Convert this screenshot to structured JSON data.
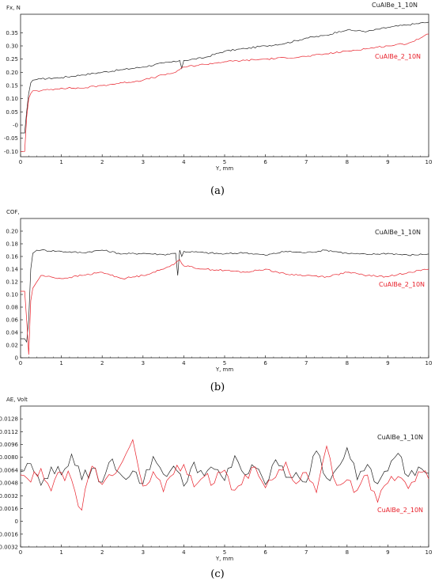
{
  "chart_data": [
    {
      "type": "line",
      "caption": "(a)",
      "ylabel": "Fx, N",
      "xlabel": "Y, mm",
      "xlim": [
        0,
        10
      ],
      "ylim": [
        -0.12,
        0.42
      ],
      "xticks": [
        "0",
        "1",
        "2",
        "3",
        "4",
        "5",
        "6",
        "7",
        "8",
        "9",
        "10"
      ],
      "yticks": [
        {
          "v": 0.35,
          "label": "0.35"
        },
        {
          "v": 0.3,
          "label": "0.30"
        },
        {
          "v": 0.25,
          "label": "0.25"
        },
        {
          "v": 0.2,
          "label": "0.20"
        },
        {
          "v": 0.15,
          "label": "0.15"
        },
        {
          "v": 0.1,
          "label": "0.10"
        },
        {
          "v": 0.05,
          "label": "0.05"
        },
        {
          "v": 0.0,
          "label": "-0"
        },
        {
          "v": -0.05,
          "label": "-0.05"
        },
        {
          "v": -0.1,
          "label": "-0.10"
        }
      ],
      "grid": false,
      "legend": "right",
      "series": [
        {
          "name": "CuAlBe_1_10N",
          "color": "#222222",
          "x": [
            0,
            0.1,
            0.15,
            0.2,
            0.25,
            0.3,
            0.5,
            1,
            1.5,
            2,
            2.5,
            3,
            3.5,
            3.8,
            3.9,
            3.95,
            4.0,
            4.5,
            5,
            5.5,
            6,
            6.5,
            7,
            7.5,
            7.8,
            8,
            8.5,
            9,
            9.5,
            10
          ],
          "y": [
            -0.03,
            -0.03,
            0.05,
            0.12,
            0.16,
            0.17,
            0.175,
            0.18,
            0.19,
            0.2,
            0.21,
            0.22,
            0.235,
            0.24,
            0.245,
            0.215,
            0.245,
            0.255,
            0.28,
            0.29,
            0.3,
            0.31,
            0.33,
            0.34,
            0.355,
            0.36,
            0.355,
            0.37,
            0.38,
            0.39
          ]
        },
        {
          "name": "CuAlBe_2_10N",
          "color": "#e8202a",
          "x": [
            0,
            0.1,
            0.15,
            0.2,
            0.25,
            0.3,
            0.5,
            1,
            1.5,
            2,
            2.5,
            3,
            3.5,
            3.8,
            3.9,
            4.0,
            4.5,
            5,
            5.5,
            6,
            6.5,
            7,
            7.5,
            8,
            8.5,
            9,
            9.5,
            9.8,
            10
          ],
          "y": [
            -0.1,
            -0.1,
            0.03,
            0.1,
            0.12,
            0.13,
            0.13,
            0.14,
            0.14,
            0.15,
            0.16,
            0.17,
            0.19,
            0.2,
            0.21,
            0.22,
            0.23,
            0.24,
            0.245,
            0.25,
            0.255,
            0.26,
            0.27,
            0.28,
            0.29,
            0.3,
            0.31,
            0.33,
            0.345
          ]
        }
      ]
    },
    {
      "type": "line",
      "caption": "(b)",
      "ylabel": "COF,",
      "xlabel": "Y, mm",
      "xlim": [
        0,
        10
      ],
      "ylim": [
        0,
        0.22
      ],
      "xticks": [
        "0",
        "1",
        "2",
        "3",
        "4",
        "5",
        "6",
        "7",
        "8",
        "9",
        "10"
      ],
      "yticks": [
        {
          "v": 0.2,
          "label": "0.20"
        },
        {
          "v": 0.18,
          "label": "0.18"
        },
        {
          "v": 0.16,
          "label": "0.16"
        },
        {
          "v": 0.14,
          "label": "0.14"
        },
        {
          "v": 0.12,
          "label": "0.12"
        },
        {
          "v": 0.1,
          "label": "0.10"
        },
        {
          "v": 0.08,
          "label": "0.08"
        },
        {
          "v": 0.06,
          "label": "0.06"
        },
        {
          "v": 0.04,
          "label": "0.04"
        },
        {
          "v": 0.02,
          "label": "0.02"
        },
        {
          "v": 0.0,
          "label": "0"
        }
      ],
      "grid": false,
      "legend": "right",
      "series": [
        {
          "name": "CuAlBe_1_10N",
          "color": "#222222",
          "x": [
            0,
            0.1,
            0.15,
            0.2,
            0.25,
            0.3,
            0.4,
            0.5,
            1,
            1.5,
            2,
            2.5,
            3,
            3.5,
            3.8,
            3.85,
            3.9,
            3.95,
            4.0,
            4.5,
            5,
            5.5,
            6,
            6.5,
            7,
            7.5,
            8,
            8.5,
            9,
            9.5,
            10
          ],
          "y": [
            0.03,
            0.03,
            0.025,
            0.06,
            0.14,
            0.165,
            0.17,
            0.17,
            0.168,
            0.166,
            0.17,
            0.164,
            0.165,
            0.163,
            0.165,
            0.13,
            0.17,
            0.16,
            0.168,
            0.166,
            0.164,
            0.166,
            0.162,
            0.168,
            0.166,
            0.17,
            0.165,
            0.163,
            0.165,
            0.162,
            0.164
          ]
        },
        {
          "name": "CuAlBe_2_10N",
          "color": "#e8202a",
          "x": [
            0,
            0.1,
            0.15,
            0.2,
            0.25,
            0.3,
            0.4,
            0.5,
            1,
            1.5,
            2,
            2.5,
            3,
            3.5,
            3.8,
            3.9,
            4.0,
            4.5,
            5,
            5.5,
            6,
            6.5,
            7,
            7.5,
            8,
            8.5,
            9,
            9.5,
            10
          ],
          "y": [
            0.105,
            0.105,
            0.06,
            0.005,
            0.09,
            0.11,
            0.12,
            0.13,
            0.125,
            0.13,
            0.135,
            0.125,
            0.13,
            0.14,
            0.15,
            0.155,
            0.145,
            0.14,
            0.138,
            0.135,
            0.14,
            0.132,
            0.13,
            0.128,
            0.135,
            0.13,
            0.128,
            0.135,
            0.14
          ]
        }
      ]
    },
    {
      "type": "line",
      "caption": "(c)",
      "ylabel": "AE, Volt",
      "xlabel": "Y, mm",
      "xlim": [
        0,
        10
      ],
      "ylim": [
        -0.0032,
        0.0144
      ],
      "xticks": [
        "0",
        "1",
        "2",
        "3",
        "4",
        "5",
        "6",
        "7",
        "8",
        "9",
        "10"
      ],
      "yticks": [
        {
          "v": 0.0128,
          "label": "0.0128"
        },
        {
          "v": 0.0112,
          "label": "0.0112"
        },
        {
          "v": 0.0096,
          "label": "0.0096"
        },
        {
          "v": 0.008,
          "label": "0.0080"
        },
        {
          "v": 0.0064,
          "label": "0.0064"
        },
        {
          "v": 0.0048,
          "label": "0.0048"
        },
        {
          "v": 0.0032,
          "label": "0.0032"
        },
        {
          "v": 0.0016,
          "label": "0.0016"
        },
        {
          "v": 0.0,
          "label": "0"
        },
        {
          "v": -0.0016,
          "label": "-0.0016"
        },
        {
          "v": -0.0032,
          "label": "-0.0032"
        }
      ],
      "grid": false,
      "legend": "right",
      "series": [
        {
          "name": "CuAlBe_1_10N",
          "color": "#222222",
          "x": [
            0,
            0.25,
            0.5,
            0.75,
            1,
            1.25,
            1.5,
            1.75,
            2,
            2.25,
            2.5,
            2.75,
            3,
            3.25,
            3.5,
            3.75,
            4,
            4.25,
            4.5,
            4.75,
            5,
            5.25,
            5.5,
            5.75,
            6,
            6.25,
            6.5,
            6.75,
            7,
            7.25,
            7.5,
            7.75,
            8,
            8.25,
            8.5,
            8.75,
            9,
            9.25,
            9.5,
            9.75,
            10
          ],
          "y": [
            0.0062,
            0.0072,
            0.0045,
            0.0068,
            0.0058,
            0.0084,
            0.0052,
            0.0066,
            0.0049,
            0.0078,
            0.0056,
            0.0063,
            0.0047,
            0.0081,
            0.0059,
            0.0069,
            0.0044,
            0.0074,
            0.0057,
            0.0065,
            0.0051,
            0.0082,
            0.0058,
            0.0067,
            0.0046,
            0.0077,
            0.0055,
            0.0061,
            0.0049,
            0.0088,
            0.0054,
            0.0066,
            0.0092,
            0.0052,
            0.0071,
            0.0047,
            0.0063,
            0.0085,
            0.0056,
            0.0068,
            0.006
          ]
        },
        {
          "name": "CuAlBe_2_10N",
          "color": "#e8202a",
          "x": [
            0,
            0.25,
            0.5,
            0.75,
            1,
            1.25,
            1.5,
            1.75,
            2,
            2.25,
            2.5,
            2.75,
            3,
            3.25,
            3.5,
            3.75,
            4,
            4.25,
            4.5,
            4.75,
            5,
            5.25,
            5.5,
            5.75,
            6,
            6.25,
            6.5,
            6.75,
            7,
            7.25,
            7.5,
            7.75,
            8,
            8.25,
            8.5,
            8.75,
            9,
            9.25,
            9.5,
            9.75,
            10
          ],
          "y": [
            0.0058,
            0.0049,
            0.0066,
            0.0038,
            0.0061,
            0.0052,
            0.0014,
            0.0069,
            0.0046,
            0.0057,
            0.0075,
            0.0102,
            0.0044,
            0.0062,
            0.0037,
            0.0059,
            0.0071,
            0.0043,
            0.0056,
            0.0048,
            0.0064,
            0.0039,
            0.0058,
            0.0068,
            0.0042,
            0.0055,
            0.0074,
            0.0047,
            0.0061,
            0.0036,
            0.0094,
            0.0045,
            0.0052,
            0.0039,
            0.0058,
            0.0024,
            0.0048,
            0.0056,
            0.0041,
            0.0062,
            0.0053
          ]
        }
      ]
    }
  ]
}
